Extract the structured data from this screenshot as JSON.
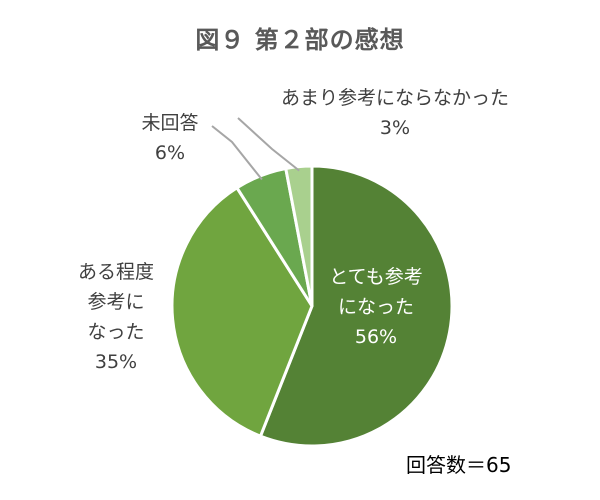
{
  "title": "図９ 第２部の感想",
  "total_label": "回答数＝65",
  "chart_data": {
    "type": "pie",
    "title": "図９ 第２部の感想",
    "start_angle_deg": 0,
    "direction": "clockwise",
    "slices": [
      {
        "label": "とても参考になった",
        "value": 56,
        "pct_label": "56%",
        "color": "#548235"
      },
      {
        "label": "ある程度参考になった",
        "value": 35,
        "pct_label": "35%",
        "color": "#70a53f"
      },
      {
        "label": "未回答",
        "value": 6,
        "pct_label": "6%",
        "color": "#6aa84f"
      },
      {
        "label": "あまり参考にならなかった",
        "value": 3,
        "pct_label": "3%",
        "color": "#a9d08e"
      }
    ],
    "total": 65,
    "display_labels": [
      [
        "とても参考",
        "になった"
      ],
      [
        "ある程度",
        "参考に",
        "なった"
      ],
      [
        "未回答"
      ],
      [
        "あまり参考にならなかった"
      ]
    ]
  }
}
